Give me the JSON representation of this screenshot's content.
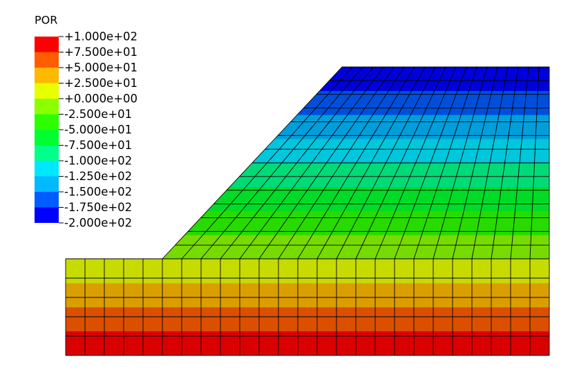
{
  "legend": {
    "title": "POR",
    "labels": [
      "+1.000e+02",
      "+7.500e+01",
      "+5.000e+01",
      "+2.500e+01",
      "+0.000e+00",
      "-2.500e+01",
      "-5.000e+01",
      "-7.500e+01",
      "-1.000e+02",
      "-1.250e+02",
      "-1.500e+02",
      "-1.750e+02",
      "-2.000e+02"
    ],
    "colors": [
      "#ff0000",
      "#ff5d00",
      "#ffb900",
      "#e8ff00",
      "#8bff00",
      "#2eff00",
      "#00ff2e",
      "#00ff8b",
      "#00e8ff",
      "#00b9ff",
      "#005dff",
      "#0000ff"
    ]
  }
}
